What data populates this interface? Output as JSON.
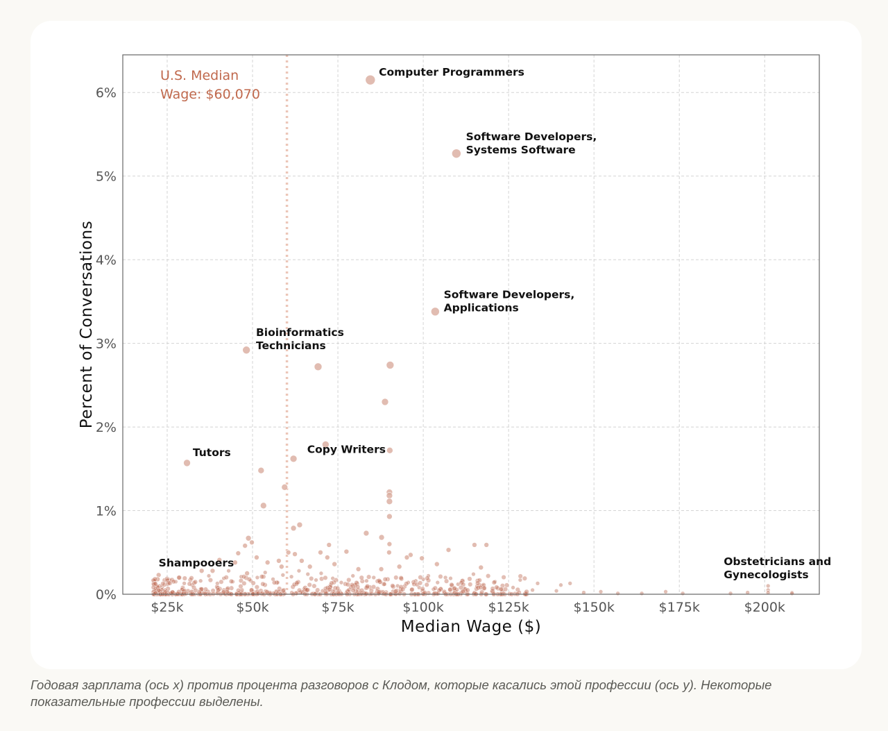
{
  "chart_data": {
    "type": "scatter",
    "title": "",
    "xlabel": "Median Wage ($)",
    "ylabel": "Percent of Conversations",
    "xlim": [
      12000,
      216000
    ],
    "ylim": [
      0,
      6.45
    ],
    "grid": true,
    "x_ticks": [
      {
        "value": 25000,
        "label": "$25k"
      },
      {
        "value": 50000,
        "label": "$50k"
      },
      {
        "value": 75000,
        "label": "$75k"
      },
      {
        "value": 100000,
        "label": "$100k"
      },
      {
        "value": 125000,
        "label": "$125k"
      },
      {
        "value": 150000,
        "label": "$150k"
      },
      {
        "value": 175000,
        "label": "$175k"
      },
      {
        "value": 200000,
        "label": "$200k"
      }
    ],
    "y_ticks": [
      {
        "value": 0,
        "label": "0%"
      },
      {
        "value": 1,
        "label": "1%"
      },
      {
        "value": 2,
        "label": "2%"
      },
      {
        "value": 3,
        "label": "3%"
      },
      {
        "value": 4,
        "label": "4%"
      },
      {
        "value": 5,
        "label": "5%"
      },
      {
        "value": 6,
        "label": "6%"
      }
    ],
    "reference_line": {
      "axis": "x",
      "value": 60070,
      "label_lines": [
        "U.S. Median",
        "Wage: $60,070"
      ]
    },
    "annotations": [
      {
        "lines": [
          "Computer Programmers"
        ],
        "x": 87000,
        "y": 6.2
      },
      {
        "lines": [
          "Software Developers,",
          "Systems Software"
        ],
        "x": 112500,
        "y": 5.43
      },
      {
        "lines": [
          "Software Developers,",
          "Applications"
        ],
        "x": 106000,
        "y": 3.54
      },
      {
        "lines": [
          "Bioinformatics",
          "Technicians"
        ],
        "x": 51000,
        "y": 3.09
      },
      {
        "lines": [
          "Tutors"
        ],
        "x": 32500,
        "y": 1.65
      },
      {
        "lines": [
          "Copy Writers"
        ],
        "x": 66000,
        "y": 1.69
      },
      {
        "lines": [
          "Shampooers"
        ],
        "x": 22500,
        "y": 0.33
      },
      {
        "lines": [
          "Obstetricians and",
          "Gynecologists"
        ],
        "x": 188000,
        "y": 0.35
      }
    ],
    "series": [
      {
        "name": "occupations_highlight",
        "points": [
          [
            84500,
            6.15,
            14
          ],
          [
            109700,
            5.27,
            13
          ],
          [
            103500,
            3.38,
            12
          ],
          [
            48200,
            2.92,
            11
          ],
          [
            69200,
            2.72,
            11
          ],
          [
            90300,
            2.74,
            11
          ],
          [
            88800,
            2.3,
            10
          ],
          [
            71400,
            1.79,
            10
          ],
          [
            90200,
            1.72,
            9
          ],
          [
            62000,
            1.62,
            10
          ],
          [
            30800,
            1.57,
            10
          ],
          [
            52500,
            1.48,
            9
          ],
          [
            59400,
            1.28,
            9
          ],
          [
            53200,
            1.06,
            9
          ],
          [
            90100,
            1.22,
            9
          ],
          [
            90100,
            1.18,
            9
          ],
          [
            90100,
            1.11,
            9
          ],
          [
            90100,
            0.93,
            8
          ],
          [
            63800,
            0.83,
            8
          ],
          [
            62000,
            0.79,
            8
          ],
          [
            83300,
            0.73,
            8
          ],
          [
            48800,
            0.67,
            8
          ],
          [
            87800,
            0.68,
            8
          ],
          [
            115000,
            0.59,
            7
          ],
          [
            118500,
            0.59,
            7
          ]
        ]
      },
      {
        "name": "occupations_mid",
        "points": [
          [
            49800,
            0.62,
            7
          ],
          [
            47800,
            0.58,
            7
          ],
          [
            72400,
            0.59,
            7
          ],
          [
            90100,
            0.6,
            7
          ],
          [
            60500,
            0.5,
            7
          ],
          [
            62400,
            0.48,
            7
          ],
          [
            69900,
            0.5,
            7
          ],
          [
            77500,
            0.51,
            7
          ],
          [
            90000,
            0.5,
            7
          ],
          [
            96300,
            0.47,
            7
          ],
          [
            95200,
            0.44,
            7
          ],
          [
            99600,
            0.43,
            7
          ],
          [
            107400,
            0.53,
            7
          ],
          [
            116900,
            0.32,
            7
          ],
          [
            57700,
            0.4,
            7
          ],
          [
            64400,
            0.4,
            7
          ],
          [
            71900,
            0.44,
            7
          ],
          [
            40300,
            0.41,
            7
          ],
          [
            44900,
            0.38,
            7
          ],
          [
            45800,
            0.49,
            7
          ],
          [
            51200,
            0.44,
            7
          ],
          [
            54400,
            0.38,
            7
          ],
          [
            58500,
            0.33,
            7
          ],
          [
            66800,
            0.33,
            7
          ],
          [
            74000,
            0.36,
            7
          ],
          [
            81000,
            0.3,
            7
          ],
          [
            87700,
            0.3,
            7
          ],
          [
            93000,
            0.33,
            7
          ],
          [
            104000,
            0.36,
            7
          ],
          [
            35100,
            0.28,
            7
          ],
          [
            38300,
            0.28,
            7
          ],
          [
            48400,
            0.25,
            7
          ],
          [
            22500,
            0.23,
            7
          ],
          [
            22200,
            0.18,
            7
          ]
        ]
      },
      {
        "name": "occupations_low",
        "points": [
          [
            114700,
            0.24,
            6
          ],
          [
            128400,
            0.17,
            6
          ],
          [
            126300,
            0.08,
            6
          ],
          [
            133500,
            0.13,
            6
          ],
          [
            140300,
            0.11,
            6
          ],
          [
            143000,
            0.13,
            6
          ],
          [
            132000,
            0.05,
            6
          ],
          [
            139000,
            0.04,
            6
          ],
          [
            152000,
            0.03,
            6
          ],
          [
            171000,
            0.03,
            6
          ],
          [
            176000,
            0.01,
            6
          ],
          [
            190000,
            0.01,
            6
          ],
          [
            195000,
            0.02,
            6
          ],
          [
            201000,
            0.1,
            6
          ],
          [
            201000,
            0.05,
            6
          ],
          [
            201000,
            0.02,
            6
          ],
          [
            208000,
            0.02,
            6
          ],
          [
            208000,
            0.01,
            6
          ],
          [
            121000,
            0.15,
            6
          ],
          [
            117500,
            0.1,
            6
          ],
          [
            110200,
            0.12,
            6
          ],
          [
            108000,
            0.19,
            6
          ],
          [
            106500,
            0.2,
            6
          ],
          [
            104200,
            0.14,
            6
          ],
          [
            101500,
            0.22,
            6
          ],
          [
            100000,
            0.18,
            6
          ],
          [
            97800,
            0.16,
            6
          ],
          [
            95600,
            0.14,
            6
          ],
          [
            92500,
            0.1,
            6
          ],
          [
            85500,
            0.2,
            6
          ],
          [
            83400,
            0.16,
            6
          ],
          [
            79400,
            0.22,
            6
          ],
          [
            76000,
            0.14,
            6
          ],
          [
            73500,
            0.19,
            6
          ],
          [
            70100,
            0.25,
            6
          ],
          [
            68600,
            0.17,
            6
          ],
          [
            66200,
            0.24,
            6
          ],
          [
            63600,
            0.28,
            6
          ],
          [
            61400,
            0.21,
            6
          ],
          [
            58900,
            0.23,
            6
          ],
          [
            56000,
            0.18,
            6
          ],
          [
            53700,
            0.26,
            6
          ],
          [
            51400,
            0.2,
            6
          ],
          [
            49500,
            0.16,
            6
          ],
          [
            46700,
            0.21,
            6
          ],
          [
            44200,
            0.15,
            6
          ],
          [
            41600,
            0.19,
            6
          ],
          [
            39700,
            0.13,
            6
          ],
          [
            37200,
            0.22,
            6
          ],
          [
            34800,
            0.16,
            6
          ],
          [
            32300,
            0.11,
            6
          ],
          [
            30000,
            0.13,
            6
          ],
          [
            27500,
            0.15,
            6
          ],
          [
            25200,
            0.12,
            6
          ],
          [
            23600,
            0.09,
            6
          ],
          [
            43000,
            0.28,
            6
          ],
          [
            57400,
            0.14,
            6
          ],
          [
            62900,
            0.12,
            6
          ],
          [
            72800,
            0.11,
            6
          ],
          [
            88700,
            0.12,
            6
          ],
          [
            98800,
            0.08,
            6
          ],
          [
            103000,
            0.06,
            6
          ],
          [
            112000,
            0.07,
            6
          ],
          [
            123000,
            0.06,
            6
          ],
          [
            147000,
            0.02,
            6
          ],
          [
            157000,
            0.01,
            6
          ],
          [
            164000,
            0.01,
            6
          ]
        ]
      }
    ]
  },
  "caption": "Годовая зарплата (ось x) против процента разговоров с Клодом, которые касались этой профессии (ось y). Некоторые показательные профессии выделены."
}
